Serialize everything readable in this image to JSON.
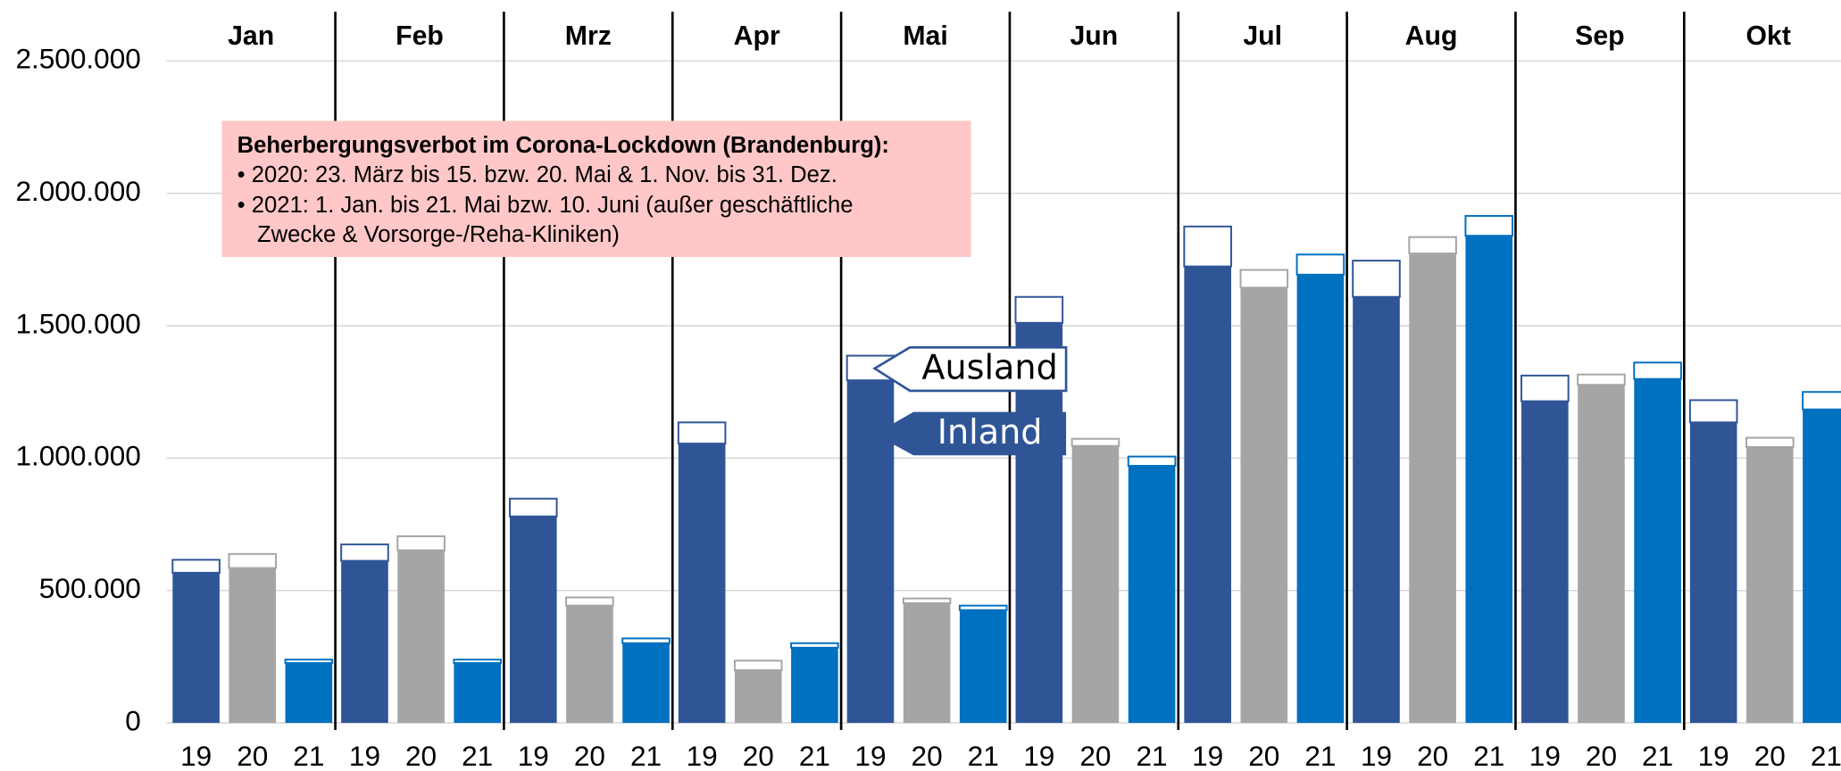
{
  "chart_data": {
    "type": "grouped-stacked-bar",
    "categories": [
      "Jan",
      "Feb",
      "Mrz",
      "Apr",
      "Mai",
      "Jun",
      "Jul",
      "Aug",
      "Sep",
      "Okt"
    ],
    "years": [
      "19",
      "20",
      "21"
    ],
    "year_colors": [
      "#2f5597",
      "#a5a5a5",
      "#0070c0"
    ],
    "series": [
      {
        "name": "Inland",
        "fill": "year",
        "values": [
          [
            567000,
            585000,
            226000
          ],
          [
            612000,
            652000,
            226000
          ],
          [
            780000,
            443000,
            301000
          ],
          [
            1055000,
            199000,
            284000
          ],
          [
            1294000,
            452000,
            426000
          ],
          [
            1511000,
            1046000,
            971000
          ],
          [
            1724000,
            1644000,
            1693000
          ],
          [
            1609000,
            1773000,
            1840000
          ],
          [
            1215000,
            1277000,
            1299000
          ],
          [
            1135000,
            1042000,
            1184000
          ]
        ]
      },
      {
        "name": "Ausland",
        "fill": "#ffffff",
        "values": [
          [
            49000,
            53000,
            13000
          ],
          [
            62000,
            53000,
            13000
          ],
          [
            67000,
            31000,
            18000
          ],
          [
            80000,
            36000,
            17000
          ],
          [
            93000,
            18000,
            17000
          ],
          [
            98000,
            27000,
            35000
          ],
          [
            151000,
            67000,
            76000
          ],
          [
            137000,
            62000,
            75000
          ],
          [
            97000,
            39000,
            62000
          ],
          [
            84000,
            35000,
            66000
          ]
        ]
      }
    ],
    "ylim": [
      0,
      2500000
    ],
    "yticks": [
      0,
      {
        "value": 500000,
        "label": "500.000"
      },
      {
        "value": 1000000,
        "label": "1.000.000"
      },
      {
        "value": 1500000,
        "label": "1.500.000"
      },
      {
        "value": 2000000,
        "label": "2.000.000"
      },
      {
        "value": 2500000,
        "label": "2.500.000"
      }
    ],
    "grid": true,
    "annotation": {
      "title": "Beherbergungsverbot im Corona-Lockdown (Brandenburg):",
      "lines": [
        "• 2020: 23. März bis 15. bzw. 20. Mai & 1. Nov. bis 31. Dez.",
        "• 2021: 1. Jan. bis 21. Mai bzw. 10. Juni (außer geschäftliche",
        "Zwecke & Vorsorge-/Reha-Kliniken)"
      ]
    }
  }
}
